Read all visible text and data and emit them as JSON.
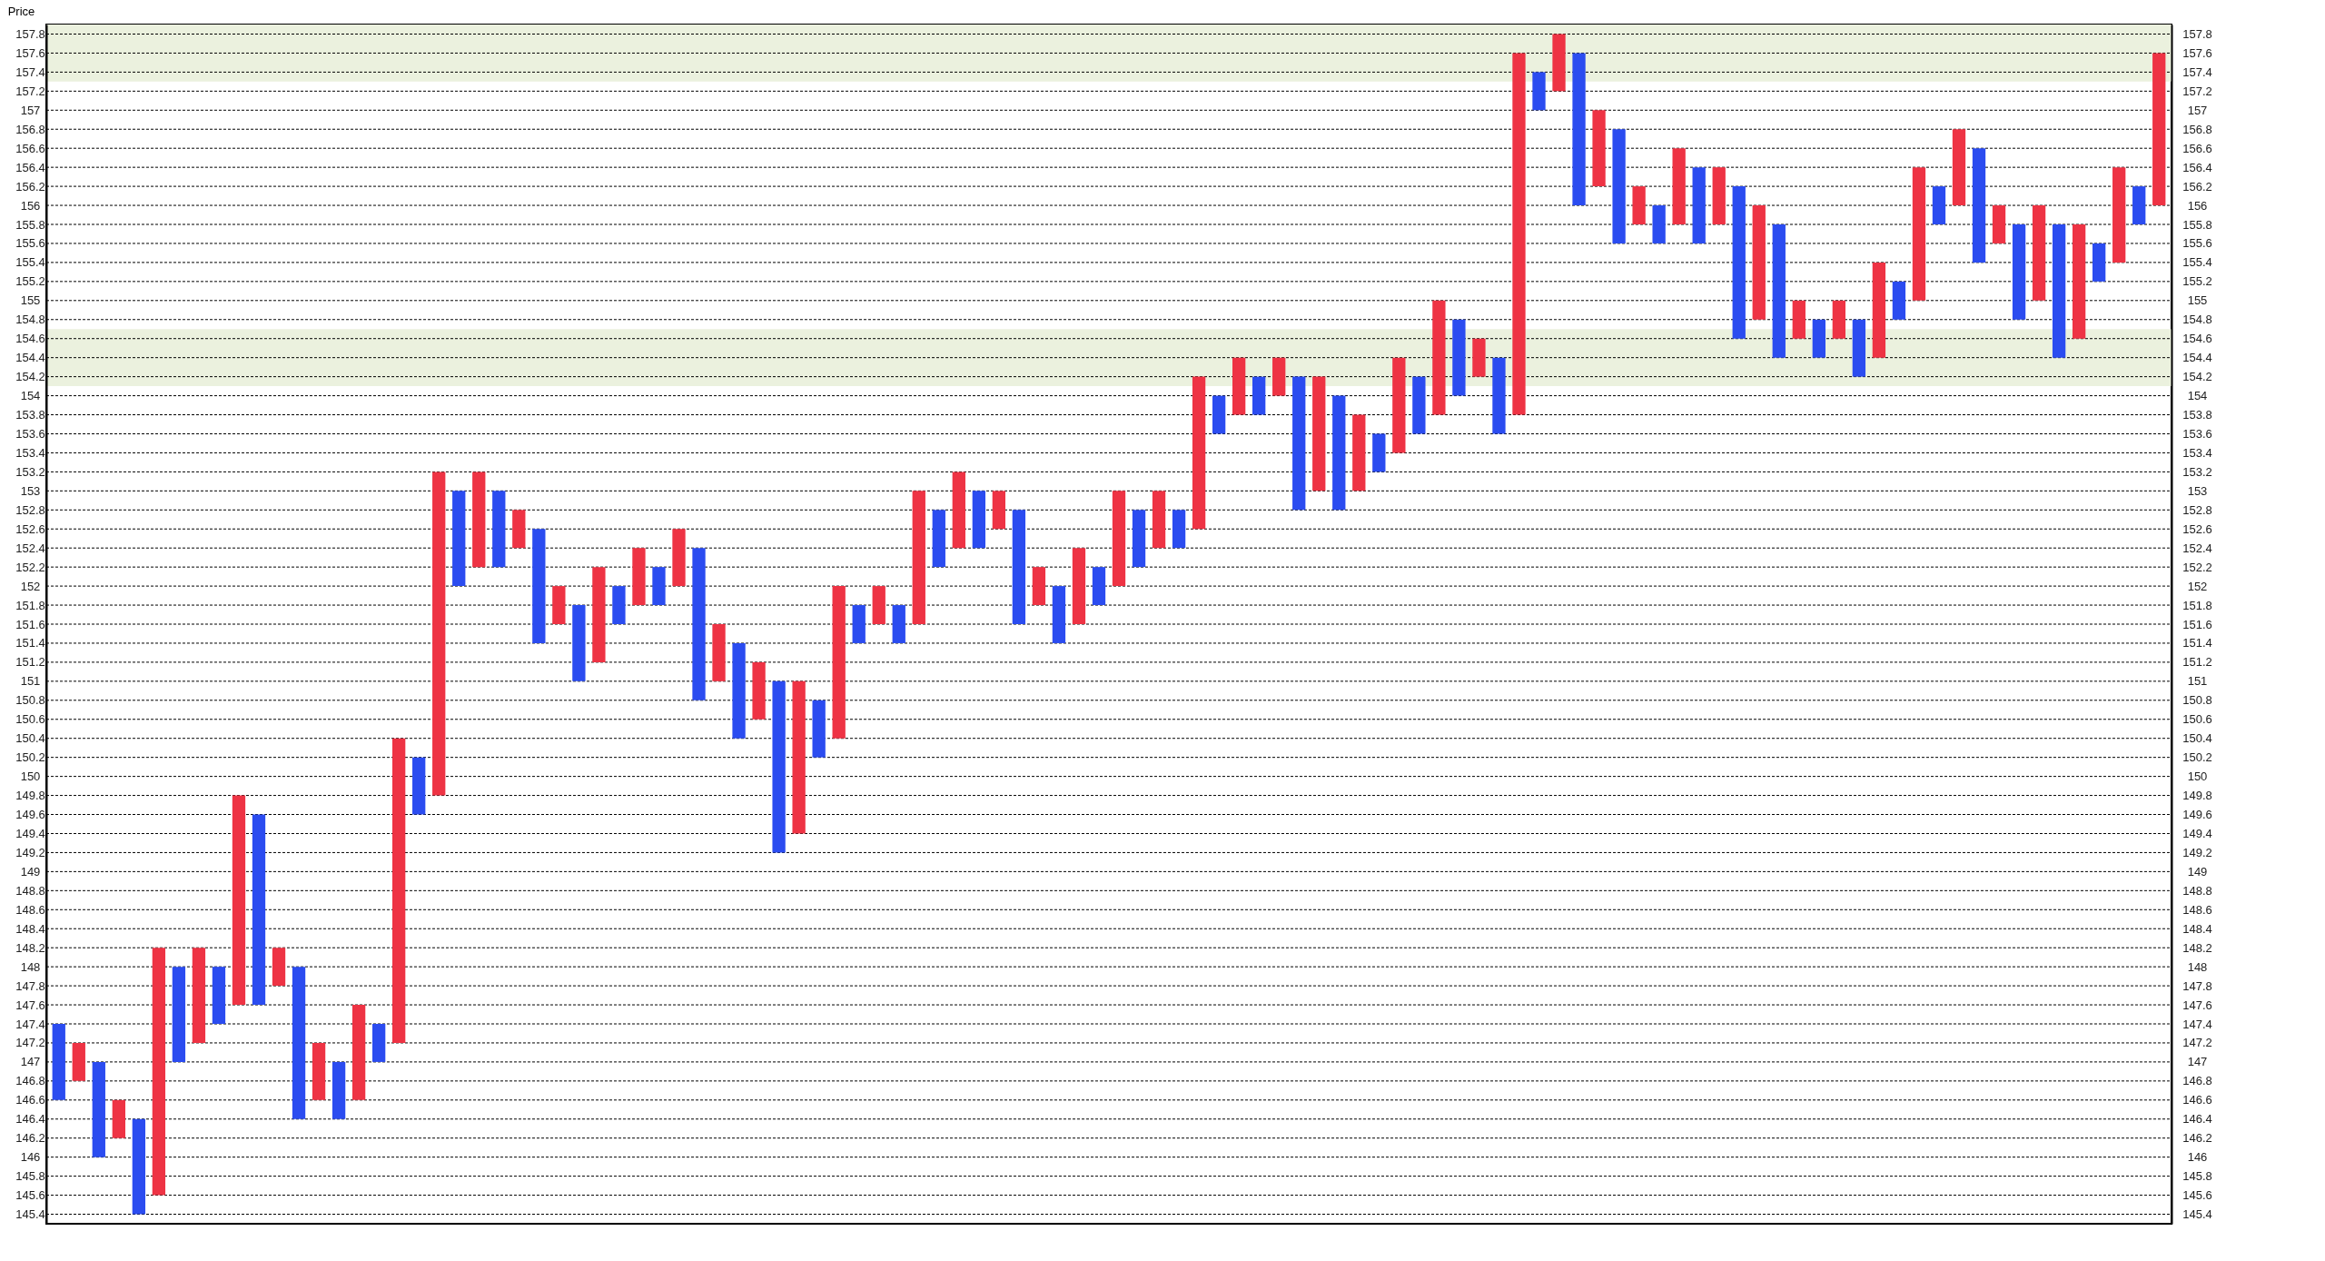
{
  "chart_data": {
    "type": "bar",
    "ylabel": "Price",
    "categories": [
      null,
      null,
      null,
      null,
      null,
      null,
      null,
      null,
      null,
      null,
      null,
      null,
      null,
      null,
      null,
      null,
      null,
      null,
      null,
      null,
      null,
      null,
      null,
      null,
      null,
      null,
      null,
      null,
      null,
      null,
      null,
      null,
      null,
      null,
      null,
      null,
      null,
      null,
      null,
      null,
      null,
      null,
      null,
      null,
      null,
      null,
      null,
      null,
      null,
      null,
      null,
      null,
      null,
      null,
      null,
      null,
      null,
      null,
      null,
      null,
      null,
      null,
      null,
      null,
      null,
      null,
      null,
      null,
      null,
      null,
      null,
      null,
      null,
      null,
      null,
      null,
      null,
      null,
      null,
      null,
      null,
      null,
      null,
      null,
      null,
      null,
      null,
      null,
      null,
      null,
      null,
      null,
      null,
      null,
      null,
      null,
      null,
      null,
      null,
      null,
      null,
      null,
      null,
      null,
      null,
      null
    ],
    "base": [
      146.6,
      146.8,
      146,
      146.2,
      145.4,
      145.6,
      147,
      147.2,
      147.4,
      147.6,
      147.6,
      147.8,
      146.4,
      146.6,
      146.4,
      146.6,
      147,
      147.2,
      149.6,
      149.8,
      152,
      152.2,
      152.2,
      152.4,
      151.4,
      151.6,
      151,
      151.2,
      151.6,
      151.8,
      151.8,
      152,
      150.8,
      151,
      150.4,
      150.6,
      149.2,
      149.4,
      150.2,
      150.4,
      151.4,
      151.6,
      151.4,
      151.6,
      152.2,
      152.4,
      152.4,
      152.6,
      151.6,
      151.8,
      151.4,
      151.6,
      151.8,
      152,
      152.2,
      152.4,
      152.4,
      152.6,
      153.6,
      153.8,
      153.8,
      154,
      152.8,
      153,
      152.8,
      153,
      153.2,
      153.4,
      153.6,
      153.8,
      154,
      154.2,
      153.6,
      153.8,
      157,
      157.2,
      156,
      156.2,
      155.6,
      155.8,
      155.6,
      155.8,
      155.6,
      155.8,
      154.6,
      154.8,
      154.4,
      154.6,
      154.4,
      154.6,
      154.2,
      154.4,
      154.8,
      155,
      155.8,
      156,
      155.4,
      155.6,
      154.8,
      155,
      154.4,
      154.6,
      155.2,
      155.4,
      155.8,
      156
    ],
    "values": [
      0.8,
      0.4,
      1.0,
      0.4,
      1.0,
      2.6,
      1.0,
      1.0,
      0.6,
      2.2,
      2.0,
      0.4,
      1.6,
      0.6,
      0.6,
      1.0,
      0.4,
      3.2,
      0.6,
      3.4,
      1.0,
      1.0,
      0.8,
      0.4,
      1.2,
      0.4,
      0.8,
      1.0,
      0.4,
      0.6,
      0.4,
      0.6,
      1.6,
      0.6,
      1.0,
      0.6,
      1.8,
      1.6,
      0.6,
      1.6,
      0.4,
      0.4,
      0.4,
      1.4,
      0.6,
      0.8,
      0.6,
      0.4,
      1.2,
      0.4,
      0.6,
      0.8,
      0.4,
      1.0,
      0.6,
      0.6,
      0.4,
      1.6,
      0.4,
      0.6,
      0.4,
      0.4,
      1.4,
      1.2,
      1.2,
      0.8,
      0.4,
      1.0,
      0.6,
      1.2,
      0.8,
      0.4,
      0.8,
      3.8,
      0.4,
      0.6,
      1.6,
      0.8,
      1.2,
      0.4,
      0.4,
      0.8,
      0.8,
      0.6,
      1.6,
      1.2,
      1.4,
      0.4,
      0.4,
      0.4,
      0.6,
      1.0,
      0.4,
      1.4,
      0.4,
      0.8,
      1.2,
      0.4,
      1.0,
      1.0,
      1.4,
      1.2,
      0.4,
      1.0,
      0.4,
      1.6
    ],
    "colors": [
      "#2b4cf0",
      "#ee3344",
      "#2b4cf0",
      "#ee3344",
      "#2b4cf0",
      "#ee3344",
      "#2b4cf0",
      "#ee3344",
      "#2b4cf0",
      "#ee3344",
      "#2b4cf0",
      "#ee3344",
      "#2b4cf0",
      "#ee3344",
      "#2b4cf0",
      "#ee3344",
      "#2b4cf0",
      "#ee3344",
      "#2b4cf0",
      "#ee3344",
      "#2b4cf0",
      "#ee3344",
      "#2b4cf0",
      "#ee3344",
      "#2b4cf0",
      "#ee3344",
      "#2b4cf0",
      "#ee3344",
      "#2b4cf0",
      "#ee3344",
      "#2b4cf0",
      "#ee3344",
      "#2b4cf0",
      "#ee3344",
      "#2b4cf0",
      "#ee3344",
      "#2b4cf0",
      "#ee3344",
      "#2b4cf0",
      "#ee3344",
      "#2b4cf0",
      "#ee3344",
      "#2b4cf0",
      "#ee3344",
      "#2b4cf0",
      "#ee3344",
      "#2b4cf0",
      "#ee3344",
      "#2b4cf0",
      "#ee3344",
      "#2b4cf0",
      "#ee3344",
      "#2b4cf0",
      "#ee3344",
      "#2b4cf0",
      "#ee3344",
      "#2b4cf0",
      "#ee3344",
      "#2b4cf0",
      "#ee3344",
      "#2b4cf0",
      "#ee3344",
      "#2b4cf0",
      "#ee3344",
      "#2b4cf0",
      "#ee3344",
      "#2b4cf0",
      "#ee3344",
      "#2b4cf0",
      "#ee3344",
      "#2b4cf0",
      "#ee3344",
      "#2b4cf0",
      "#ee3344",
      "#2b4cf0",
      "#ee3344",
      "#2b4cf0",
      "#ee3344",
      "#2b4cf0",
      "#ee3344",
      "#2b4cf0",
      "#ee3344",
      "#2b4cf0",
      "#ee3344",
      "#2b4cf0",
      "#ee3344",
      "#2b4cf0",
      "#ee3344",
      "#2b4cf0",
      "#ee3344",
      "#2b4cf0",
      "#ee3344",
      "#2b4cf0",
      "#ee3344",
      "#2b4cf0",
      "#ee3344",
      "#2b4cf0",
      "#ee3344",
      "#2b4cf0",
      "#ee3344",
      "#2b4cf0",
      "#ee3344",
      "#2b4cf0",
      "#ee3344",
      "#2b4cf0",
      "#ee3344"
    ],
    "ylim": [
      145.3,
      157.9
    ],
    "y2lim": [
      145.3,
      157.9
    ],
    "yticks": [
      145.4,
      145.6,
      145.8,
      146,
      146.2,
      146.4,
      146.6,
      146.8,
      147,
      147.2,
      147.4,
      147.6,
      147.8,
      148,
      148.2,
      148.4,
      148.6,
      148.8,
      149,
      149.2,
      149.4,
      149.6,
      149.8,
      150,
      150.2,
      150.4,
      150.6,
      150.8,
      151,
      151.2,
      151.4,
      151.6,
      151.8,
      152,
      152.2,
      152.4,
      152.6,
      152.8,
      153,
      153.2,
      153.4,
      153.6,
      153.8,
      154,
      154.2,
      154.4,
      154.6,
      154.8,
      155,
      155.2,
      155.4,
      155.6,
      155.8,
      156,
      156.2,
      156.4,
      156.6,
      156.8,
      157,
      157.2,
      157.4,
      157.6,
      157.8
    ],
    "y2ticks": [
      145.4,
      145.6,
      145.8,
      146,
      146.2,
      146.4,
      146.6,
      146.8,
      147,
      147.2,
      147.4,
      147.6,
      147.8,
      148,
      148.2,
      148.4,
      148.6,
      148.8,
      149,
      149.2,
      149.4,
      149.6,
      149.8,
      150,
      150.2,
      150.4,
      150.6,
      150.8,
      151,
      151.2,
      151.4,
      151.6,
      151.8,
      152,
      152.2,
      152.4,
      152.6,
      152.8,
      153,
      153.2,
      153.4,
      153.6,
      153.8,
      154,
      154.2,
      154.4,
      154.6,
      154.8,
      155,
      155.2,
      155.4,
      155.6,
      155.8,
      156,
      156.2,
      156.4,
      156.6,
      156.8,
      157,
      157.2,
      157.4,
      157.6,
      157.8
    ],
    "tick_labels": "y",
    "grid": "y",
    "bands": [
      {
        "axis": "y",
        "from": 157.3,
        "to": 157.9,
        "color": "#ebf1de"
      },
      {
        "axis": "y",
        "from": 154.1,
        "to": 154.7,
        "color": "#ebf1de"
      }
    ]
  }
}
